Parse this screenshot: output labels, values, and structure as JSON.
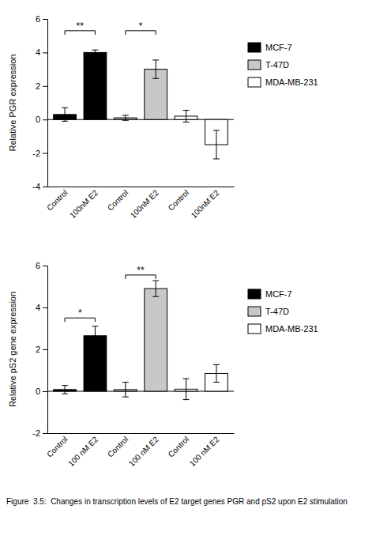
{
  "caption": "Figure  3.5:  Changes in transcription levels of E2 target genes PGR and pS2 upon E2 stimulation",
  "chart_data": [
    {
      "type": "bar",
      "y_label": "Relative PGR expression",
      "categories": [
        "Control",
        "100nM E2",
        "Control",
        "100nM E2",
        "Control",
        "100nM E2"
      ],
      "series": [
        {
          "name": "MCF-7",
          "color": "#000000",
          "values": [
            0.3,
            4.0,
            null,
            null,
            null,
            null
          ],
          "errors": [
            0.4,
            0.15,
            null,
            null,
            null,
            null
          ]
        },
        {
          "name": "T-47D",
          "color": "#c8c8c8",
          "values": [
            null,
            null,
            0.1,
            3.0,
            null,
            null
          ],
          "errors": [
            null,
            null,
            0.15,
            0.55,
            null,
            null
          ]
        },
        {
          "name": "MDA-MB-231",
          "color": "#ffffff",
          "values": [
            null,
            null,
            null,
            null,
            0.2,
            -1.5
          ],
          "errors": [
            null,
            null,
            null,
            null,
            0.35,
            0.85
          ]
        }
      ],
      "ylim": [
        -4,
        6
      ],
      "yticks": [
        -4,
        -2,
        0,
        2,
        4,
        6
      ],
      "annotations": [
        {
          "text": "**",
          "x": [
            0,
            1
          ],
          "y": 5.3
        },
        {
          "text": "*",
          "x": [
            2,
            3
          ],
          "y": 5.3
        }
      ]
    },
    {
      "type": "bar",
      "y_label": "Relative pS2 gene expression",
      "categories": [
        "Control",
        "100 nM E2",
        "Control",
        "100 nM E2",
        "Control",
        "100 nM E2"
      ],
      "series": [
        {
          "name": "MCF-7",
          "color": "#000000",
          "values": [
            0.08,
            2.65,
            null,
            null,
            null,
            null
          ],
          "errors": [
            0.2,
            0.45,
            null,
            null,
            null,
            null
          ]
        },
        {
          "name": "T-47D",
          "color": "#c8c8c8",
          "values": [
            null,
            null,
            0.08,
            4.9,
            null,
            null
          ],
          "errors": [
            null,
            null,
            0.35,
            0.38,
            null,
            null
          ]
        },
        {
          "name": "MDA-MB-231",
          "color": "#ffffff",
          "values": [
            null,
            null,
            null,
            null,
            0.1,
            0.85
          ],
          "errors": [
            null,
            null,
            null,
            null,
            0.5,
            0.42
          ]
        }
      ],
      "ylim": [
        -2,
        6
      ],
      "yticks": [
        -2,
        0,
        2,
        4,
        6
      ],
      "annotations": [
        {
          "text": "*",
          "x": [
            0,
            1
          ],
          "y": 3.5
        },
        {
          "text": "**",
          "x": [
            2,
            3
          ],
          "y": 5.55
        }
      ]
    }
  ]
}
